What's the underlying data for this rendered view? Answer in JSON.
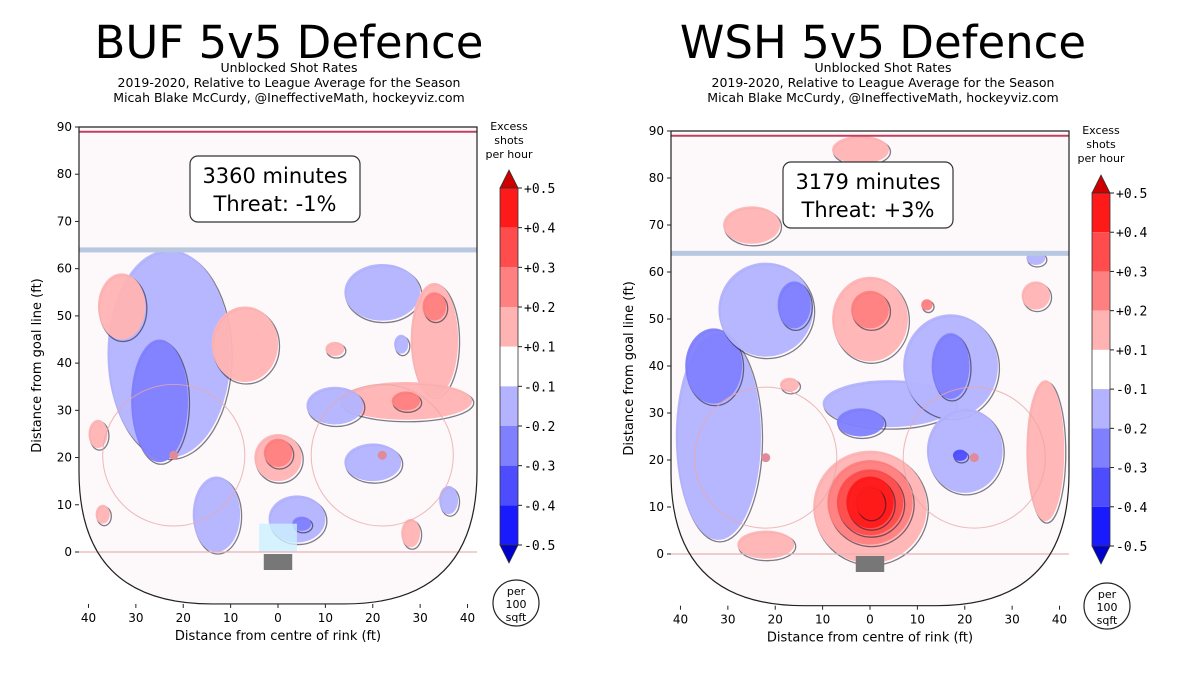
{
  "chart_data": [
    {
      "type": "heatmap",
      "title": "BUF 5v5 Defence",
      "subtitle": "Unblocked Shot Rates",
      "subtitle2": "2019-2020, Relative to League Average for the Season",
      "credit": "Micah Blake McCurdy, @IneffectiveMath, hockeyviz.com",
      "annotation_minutes": "3360 minutes",
      "annotation_threat": "Threat: -1%",
      "xlabel": "Distance from centre of rink (ft)",
      "ylabel": "Distance from goal line (ft)",
      "xlim": [
        -42,
        42
      ],
      "ylim": [
        -11,
        90
      ],
      "x_ticks": [
        "40",
        "30",
        "20",
        "10",
        "0",
        "10",
        "20",
        "30",
        "40"
      ],
      "y_ticks": [
        "0",
        "10",
        "20",
        "30",
        "40",
        "50",
        "60",
        "70",
        "80",
        "90"
      ],
      "grid": false,
      "blobs": [
        {
          "x": -23,
          "y": 42,
          "rx": 13,
          "ry": 22,
          "value": -0.15
        },
        {
          "x": -25,
          "y": 32,
          "rx": 6,
          "ry": 13,
          "value": -0.25
        },
        {
          "x": -13,
          "y": 8,
          "rx": 5,
          "ry": 8,
          "value": -0.15
        },
        {
          "x": -33,
          "y": 52,
          "rx": 5,
          "ry": 7,
          "value": 0.15
        },
        {
          "x": -7,
          "y": 44,
          "rx": 7,
          "ry": 8,
          "value": 0.15
        },
        {
          "x": -38,
          "y": 25,
          "rx": 2,
          "ry": 3,
          "value": 0.15
        },
        {
          "x": 0,
          "y": 20,
          "rx": 5,
          "ry": 5,
          "value": 0.15
        },
        {
          "x": 0,
          "y": 21,
          "rx": 3,
          "ry": 3,
          "value": 0.25
        },
        {
          "x": 22,
          "y": 55,
          "rx": 8,
          "ry": 6,
          "value": -0.15
        },
        {
          "x": 33,
          "y": 45,
          "rx": 5,
          "ry": 12,
          "value": 0.15
        },
        {
          "x": 33,
          "y": 52,
          "rx": 2.5,
          "ry": 3,
          "value": 0.25
        },
        {
          "x": 27,
          "y": 32,
          "rx": 14,
          "ry": 4,
          "value": 0.15
        },
        {
          "x": 27,
          "y": 32,
          "rx": 3,
          "ry": 2,
          "value": 0.25
        },
        {
          "x": 12,
          "y": 31,
          "rx": 6,
          "ry": 4,
          "value": -0.15
        },
        {
          "x": 20,
          "y": 19,
          "rx": 6,
          "ry": 4,
          "value": -0.15
        },
        {
          "x": 4,
          "y": 7,
          "rx": 6,
          "ry": 5,
          "value": -0.15
        },
        {
          "x": 5,
          "y": 6,
          "rx": 2,
          "ry": 1.5,
          "value": -0.25
        },
        {
          "x": 12,
          "y": 43,
          "rx": 2,
          "ry": 1.5,
          "value": 0.15
        },
        {
          "x": 26,
          "y": 44,
          "rx": 1.5,
          "ry": 2,
          "value": -0.15
        },
        {
          "x": 36,
          "y": 11,
          "rx": 2,
          "ry": 3,
          "value": -0.15
        },
        {
          "x": 28,
          "y": 4,
          "rx": 2,
          "ry": 3,
          "value": 0.15
        },
        {
          "x": -37,
          "y": 8,
          "rx": 1.5,
          "ry": 2,
          "value": 0.15
        }
      ]
    },
    {
      "type": "heatmap",
      "title": "WSH 5v5 Defence",
      "subtitle": "Unblocked Shot Rates",
      "subtitle2": "2019-2020, Relative to League Average for the Season",
      "credit": "Micah Blake McCurdy, @IneffectiveMath, hockeyviz.com",
      "annotation_minutes": "3179 minutes",
      "annotation_threat": "Threat: +3%",
      "xlabel": "Distance from centre of rink (ft)",
      "ylabel": "Distance from goal line (ft)",
      "xlim": [
        -42,
        42
      ],
      "ylim": [
        -11,
        90
      ],
      "x_ticks": [
        "40",
        "30",
        "20",
        "10",
        "0",
        "10",
        "20",
        "30",
        "40"
      ],
      "y_ticks": [
        "0",
        "10",
        "20",
        "30",
        "40",
        "50",
        "60",
        "70",
        "80",
        "90"
      ],
      "grid": false,
      "blobs": [
        {
          "x": -32,
          "y": 25,
          "rx": 9,
          "ry": 22,
          "value": -0.15
        },
        {
          "x": -33,
          "y": 40,
          "rx": 6,
          "ry": 8,
          "value": -0.25
        },
        {
          "x": -22,
          "y": 52,
          "rx": 10,
          "ry": 10,
          "value": -0.15
        },
        {
          "x": -16,
          "y": 53,
          "rx": 3.5,
          "ry": 5,
          "value": -0.25
        },
        {
          "x": 4,
          "y": 32,
          "rx": 14,
          "ry": 5,
          "value": -0.15
        },
        {
          "x": 17,
          "y": 40,
          "rx": 10,
          "ry": 11,
          "value": -0.15
        },
        {
          "x": 20,
          "y": 22,
          "rx": 8,
          "ry": 9,
          "value": -0.15
        },
        {
          "x": 17,
          "y": 40,
          "rx": 4,
          "ry": 7,
          "value": -0.25
        },
        {
          "x": -2,
          "y": 28,
          "rx": 5,
          "ry": 3,
          "value": -0.25
        },
        {
          "x": 0,
          "y": 50,
          "rx": 8,
          "ry": 9,
          "value": 0.15
        },
        {
          "x": 0,
          "y": 52,
          "rx": 4,
          "ry": 4,
          "value": 0.25
        },
        {
          "x": -25,
          "y": 70,
          "rx": 6,
          "ry": 4,
          "value": 0.15
        },
        {
          "x": -2,
          "y": 86,
          "rx": 6,
          "ry": 3,
          "value": 0.15
        },
        {
          "x": 35,
          "y": 55,
          "rx": 3,
          "ry": 3,
          "value": 0.15
        },
        {
          "x": 37,
          "y": 22,
          "rx": 4,
          "ry": 15,
          "value": 0.15
        },
        {
          "x": -22,
          "y": 2,
          "rx": 6,
          "ry": 3,
          "value": 0.15
        },
        {
          "x": -17,
          "y": 36,
          "rx": 2,
          "ry": 1.5,
          "value": 0.15
        },
        {
          "x": 12,
          "y": 53,
          "rx": 1.2,
          "ry": 1.2,
          "value": 0.25
        },
        {
          "x": 35,
          "y": 63,
          "rx": 2,
          "ry": 1.5,
          "value": -0.15
        },
        {
          "x": 0,
          "y": 10,
          "rx": 12,
          "ry": 12,
          "value": 0.15
        },
        {
          "x": 0,
          "y": 11,
          "rx": 9,
          "ry": 9,
          "value": 0.25
        },
        {
          "x": 0,
          "y": 11,
          "rx": 7,
          "ry": 7,
          "value": 0.35
        },
        {
          "x": 0,
          "y": 11,
          "rx": 5,
          "ry": 5.5,
          "value": 0.45
        },
        {
          "x": 0,
          "y": 11,
          "rx": 3,
          "ry": 3.5,
          "value": 0.5
        },
        {
          "x": 19,
          "y": 21,
          "rx": 1.5,
          "ry": 1.2,
          "value": -0.35
        }
      ]
    }
  ],
  "colorbar": {
    "header": "Excess shots per hour",
    "header_lines": [
      "Excess",
      "shots",
      "per hour"
    ],
    "labels": [
      "+0.5",
      "+0.4",
      "+0.3",
      "+0.2",
      "+0.1",
      "-0.1",
      "-0.2",
      "-0.3",
      "-0.4",
      "-0.5"
    ],
    "colors": [
      "#ff1a1a",
      "#ff4d4d",
      "#ff8080",
      "#ffb3b3",
      "#ffffff",
      "#b3b3ff",
      "#8080ff",
      "#4d4dff",
      "#1a1aff"
    ],
    "footer_lines": [
      "per",
      "100",
      "sqft"
    ]
  },
  "rink": {
    "blue_line_color": "#b8c8e0",
    "goal_line_color": "#e7b3b3",
    "end_line_color": "#c04060",
    "circle_color": "#e8a8a8",
    "goal_color": "#777777",
    "crease_color": "#ccf0ff"
  }
}
